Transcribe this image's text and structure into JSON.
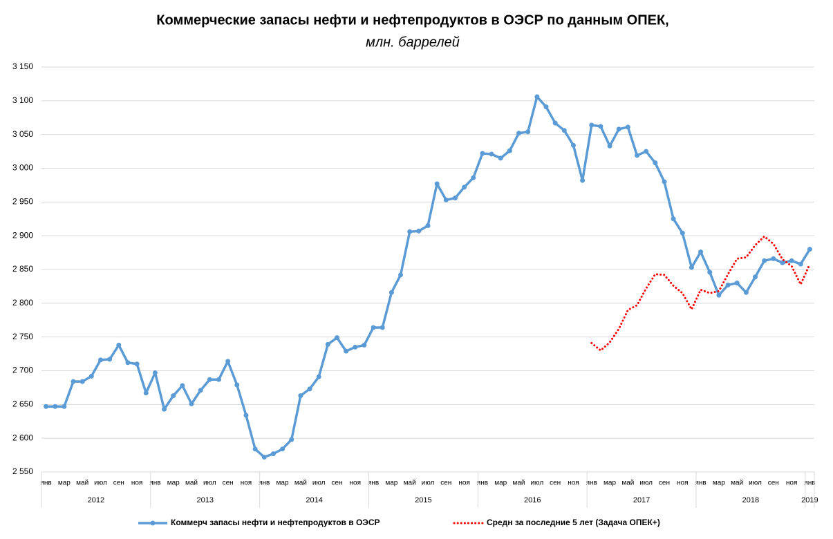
{
  "chart_data": {
    "type": "line",
    "title": "Коммерческие запасы нефти и нефтепродуктов в ОЭСР по данным ОПЕК,",
    "subtitle": "млн. баррелей",
    "categories": [
      "янв",
      null,
      "мар",
      null,
      "май",
      null,
      "июл",
      null,
      "сен",
      null,
      "ноя",
      null,
      "янв",
      null,
      "мар",
      null,
      "май",
      null,
      "июл",
      null,
      "сен",
      null,
      "ноя",
      null,
      "янв",
      null,
      "мар",
      null,
      "май",
      null,
      "июл",
      null,
      "сен",
      null,
      "ноя",
      null,
      "янв",
      null,
      "мар",
      null,
      "май",
      null,
      "июл",
      null,
      "сен",
      null,
      "ноя",
      null,
      "янв",
      null,
      "мар",
      null,
      "май",
      null,
      "июл",
      null,
      "сен",
      null,
      "ноя",
      null,
      "янв",
      null,
      "мар",
      null,
      "май",
      null,
      "июл",
      null,
      "сен",
      null,
      "ноя",
      null,
      "янв",
      null,
      "мар",
      null,
      "май",
      null,
      "июл",
      null,
      "сен",
      null,
      "ноя",
      null,
      "янв"
    ],
    "years": [
      "2012",
      "2013",
      "2014",
      "2015",
      "2016",
      "2017",
      "2018",
      "2019"
    ],
    "series": [
      {
        "name": "Коммерч запасы нефти и нефтепродуктов в ОЭСР",
        "color": "#5b9bd5",
        "style": "solid",
        "markers": true,
        "values": [
          2647,
          2647,
          2647,
          2684,
          2684,
          2692,
          2716,
          2717,
          2738,
          2712,
          2710,
          2667,
          2697,
          2643,
          2663,
          2678,
          2651,
          2671,
          2687,
          2687,
          2714,
          2679,
          2634,
          2584,
          2572,
          2577,
          2584,
          2598,
          2663,
          2673,
          2691,
          2739,
          2749,
          2729,
          2735,
          2738,
          2764,
          2764,
          2816,
          2842,
          2906,
          2907,
          2915,
          2977,
          2953,
          2956,
          2972,
          2986,
          3022,
          3021,
          3015,
          3026,
          3052,
          3054,
          3106,
          3091,
          3067,
          3056,
          3034,
          2982,
          3064,
          3062,
          3033,
          3058,
          3061,
          3019,
          3025,
          3008,
          2980,
          2925,
          2904,
          2853,
          2876,
          2846,
          2812,
          2827,
          2830,
          2816,
          2839,
          2863,
          2866,
          2860,
          2863,
          2858,
          2880
        ]
      },
      {
        "name": "Средн за последние 5 лет (Задача ОПЕК+)",
        "color": "#ff0000",
        "style": "dotted",
        "markers": false,
        "values": [
          null,
          null,
          null,
          null,
          null,
          null,
          null,
          null,
          null,
          null,
          null,
          null,
          null,
          null,
          null,
          null,
          null,
          null,
          null,
          null,
          null,
          null,
          null,
          null,
          null,
          null,
          null,
          null,
          null,
          null,
          null,
          null,
          null,
          null,
          null,
          null,
          null,
          null,
          null,
          null,
          null,
          null,
          null,
          null,
          null,
          null,
          null,
          null,
          null,
          null,
          null,
          null,
          null,
          null,
          null,
          null,
          null,
          null,
          null,
          null,
          2741,
          2730,
          2742,
          2762,
          2790,
          2797,
          2822,
          2843,
          2842,
          2826,
          2815,
          2791,
          2820,
          2815,
          2818,
          2843,
          2866,
          2868,
          2886,
          2899,
          2888,
          2865,
          2855,
          2828,
          2858
        ]
      }
    ],
    "ylim": [
      2550,
      3150
    ],
    "yticks": [
      {
        "value": 2550,
        "label": "2 550"
      },
      {
        "value": 2600,
        "label": "2 600"
      },
      {
        "value": 2650,
        "label": "2 650"
      },
      {
        "value": 2700,
        "label": "2 700"
      },
      {
        "value": 2750,
        "label": "2 750"
      },
      {
        "value": 2800,
        "label": "2 800"
      },
      {
        "value": 2850,
        "label": "2 850"
      },
      {
        "value": 2900,
        "label": "2 900"
      },
      {
        "value": 2950,
        "label": "2 950"
      },
      {
        "value": 3000,
        "label": "3 000"
      },
      {
        "value": 3050,
        "label": "3 050"
      },
      {
        "value": 3100,
        "label": "3 100"
      },
      {
        "value": 3150,
        "label": "3 150"
      }
    ],
    "grid": true
  }
}
